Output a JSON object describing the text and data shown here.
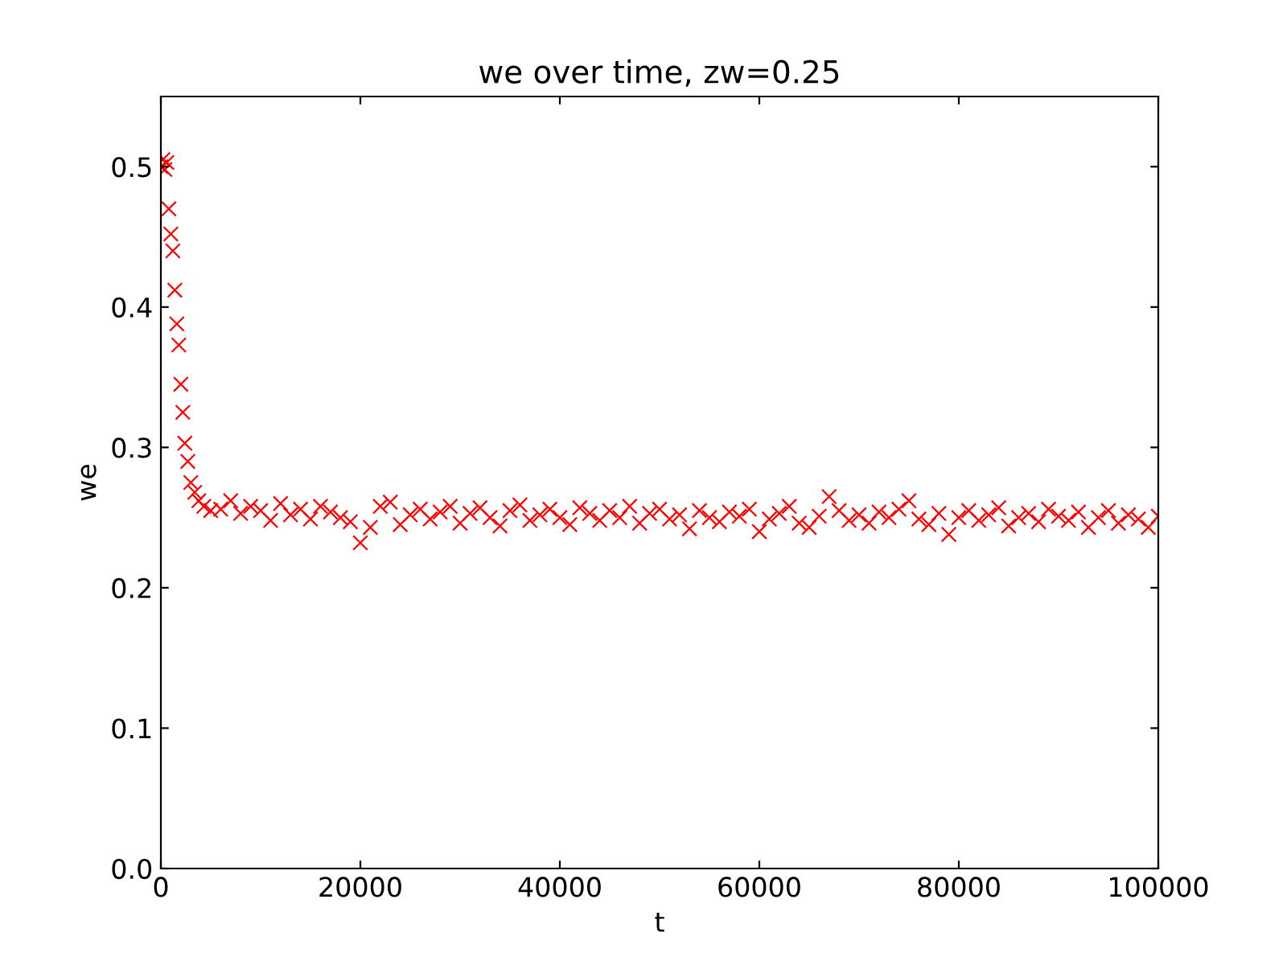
{
  "chart_data": {
    "type": "scatter",
    "title": "we over time, zw=0.25",
    "xlabel": "t",
    "ylabel": "we",
    "marker": "cross",
    "grid": false,
    "legend": false,
    "xlim": [
      0,
      100000
    ],
    "ylim": [
      0,
      0.55
    ],
    "xticks": [
      0,
      20000,
      40000,
      60000,
      80000,
      100000
    ],
    "yticks": [
      {
        "value": 0,
        "label": "0.0"
      },
      0.1,
      0.2,
      0.3,
      0.4,
      0.5
    ],
    "series": [
      {
        "color": "#ff0000",
        "x": [
          0,
          200,
          400,
          600,
          800,
          1000,
          1200,
          1400,
          1600,
          1800,
          2000,
          2200,
          2400,
          2700,
          3000,
          3400,
          3800,
          4300,
          5000,
          6000,
          7000,
          8000,
          9000,
          10000,
          11000,
          12000,
          13000,
          14000,
          15000,
          16000,
          17000,
          18000,
          19000,
          20000,
          21000,
          22000,
          23000,
          24000,
          25000,
          26000,
          27000,
          28000,
          29000,
          30000,
          31000,
          32000,
          33000,
          34000,
          35000,
          36000,
          37000,
          38000,
          39000,
          40000,
          41000,
          42000,
          43000,
          44000,
          45000,
          46000,
          47000,
          48000,
          49000,
          50000,
          51000,
          52000,
          53000,
          54000,
          55000,
          56000,
          57000,
          58000,
          59000,
          60000,
          61000,
          62000,
          63000,
          64000,
          65000,
          66000,
          67000,
          68000,
          69000,
          70000,
          71000,
          72000,
          73000,
          74000,
          75000,
          76000,
          77000,
          78000,
          79000,
          80000,
          81000,
          82000,
          83000,
          84000,
          85000,
          86000,
          87000,
          88000,
          89000,
          90000,
          91000,
          92000,
          93000,
          94000,
          95000,
          96000,
          97000,
          98000,
          99000,
          100000
        ],
        "values": [
          0.5,
          0.505,
          0.498,
          0.503,
          0.47,
          0.452,
          0.44,
          0.412,
          0.388,
          0.373,
          0.345,
          0.325,
          0.303,
          0.29,
          0.275,
          0.268,
          0.262,
          0.258,
          0.255,
          0.256,
          0.262,
          0.253,
          0.258,
          0.255,
          0.248,
          0.26,
          0.252,
          0.256,
          0.249,
          0.258,
          0.254,
          0.25,
          0.247,
          0.232,
          0.243,
          0.258,
          0.261,
          0.245,
          0.252,
          0.256,
          0.249,
          0.254,
          0.258,
          0.246,
          0.253,
          0.257,
          0.25,
          0.244,
          0.255,
          0.259,
          0.248,
          0.252,
          0.256,
          0.25,
          0.245,
          0.257,
          0.253,
          0.248,
          0.255,
          0.25,
          0.258,
          0.246,
          0.253,
          0.256,
          0.249,
          0.252,
          0.242,
          0.255,
          0.25,
          0.247,
          0.254,
          0.251,
          0.256,
          0.24,
          0.249,
          0.253,
          0.258,
          0.246,
          0.243,
          0.251,
          0.265,
          0.255,
          0.248,
          0.252,
          0.246,
          0.254,
          0.25,
          0.256,
          0.262,
          0.249,
          0.245,
          0.253,
          0.238,
          0.25,
          0.255,
          0.248,
          0.252,
          0.257,
          0.244,
          0.25,
          0.253,
          0.247,
          0.256,
          0.251,
          0.248,
          0.254,
          0.243,
          0.25,
          0.255,
          0.246,
          0.252,
          0.249,
          0.243,
          0.251
        ]
      }
    ]
  }
}
